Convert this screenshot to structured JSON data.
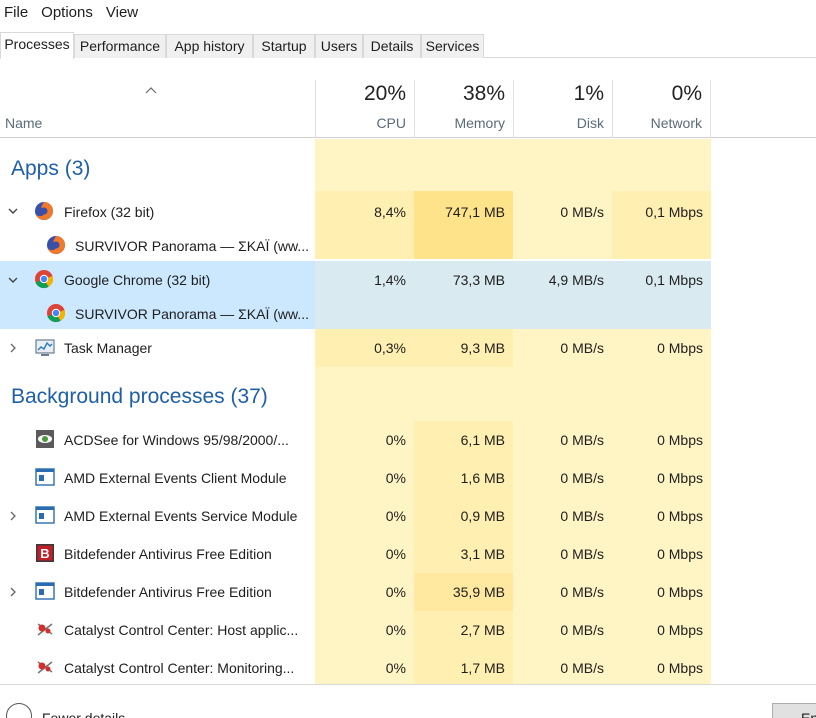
{
  "menu": [
    "File",
    "Options",
    "View"
  ],
  "tabs": [
    "Processes",
    "Performance",
    "App history",
    "Startup",
    "Users",
    "Details",
    "Services"
  ],
  "active_tab": "Processes",
  "header": {
    "name": "Name",
    "cpu": {
      "pct": "20%",
      "label": "CPU"
    },
    "memory": {
      "pct": "38%",
      "label": "Memory"
    },
    "disk": {
      "pct": "1%",
      "label": "Disk"
    },
    "network": {
      "pct": "0%",
      "label": "Network"
    }
  },
  "groups": {
    "apps": "Apps (3)",
    "background": "Background processes (37)"
  },
  "rows": [
    {
      "name": "Firefox (32 bit)",
      "cpu": "8,4%",
      "mem": "747,1 MB",
      "disk": "0 MB/s",
      "net": "0,1 Mbps"
    },
    {
      "name": "SURVIVOR Panorama — ΣΚΑΪ (ww...",
      "cpu": "",
      "mem": "",
      "disk": "",
      "net": ""
    },
    {
      "name": "Google Chrome (32 bit)",
      "cpu": "1,4%",
      "mem": "73,3 MB",
      "disk": "4,9 MB/s",
      "net": "0,1 Mbps"
    },
    {
      "name": "SURVIVOR Panorama — ΣΚΑΪ (ww...",
      "cpu": "",
      "mem": "",
      "disk": "",
      "net": ""
    },
    {
      "name": "Task Manager",
      "cpu": "0,3%",
      "mem": "9,3 MB",
      "disk": "0 MB/s",
      "net": "0 Mbps"
    },
    {
      "name": "ACDSee for Windows 95/98/2000/...",
      "cpu": "0%",
      "mem": "6,1 MB",
      "disk": "0 MB/s",
      "net": "0 Mbps"
    },
    {
      "name": "AMD External Events Client Module",
      "cpu": "0%",
      "mem": "1,6 MB",
      "disk": "0 MB/s",
      "net": "0 Mbps"
    },
    {
      "name": "AMD External Events Service Module",
      "cpu": "0%",
      "mem": "0,9 MB",
      "disk": "0 MB/s",
      "net": "0 Mbps"
    },
    {
      "name": "Bitdefender Antivirus Free Edition",
      "cpu": "0%",
      "mem": "3,1 MB",
      "disk": "0 MB/s",
      "net": "0 Mbps"
    },
    {
      "name": "Bitdefender Antivirus Free Edition",
      "cpu": "0%",
      "mem": "35,9 MB",
      "disk": "0 MB/s",
      "net": "0 Mbps"
    },
    {
      "name": "Catalyst Control Center: Host applic...",
      "cpu": "0%",
      "mem": "2,7 MB",
      "disk": "0 MB/s",
      "net": "0 Mbps"
    },
    {
      "name": "Catalyst Control Center: Monitoring...",
      "cpu": "0%",
      "mem": "1,7 MB",
      "disk": "0 MB/s",
      "net": "0 Mbps"
    }
  ],
  "footer": {
    "fewer_details": "Fewer details",
    "end_task": "End task"
  },
  "colors": {
    "heat_light": "#fff4c4",
    "heat_mid": "#ffefb0",
    "heat_strong": "#ffe38a",
    "selected_name": "#cce8ff",
    "selected_data": "#d9eaf0",
    "group_title": "#1f5fa8"
  }
}
